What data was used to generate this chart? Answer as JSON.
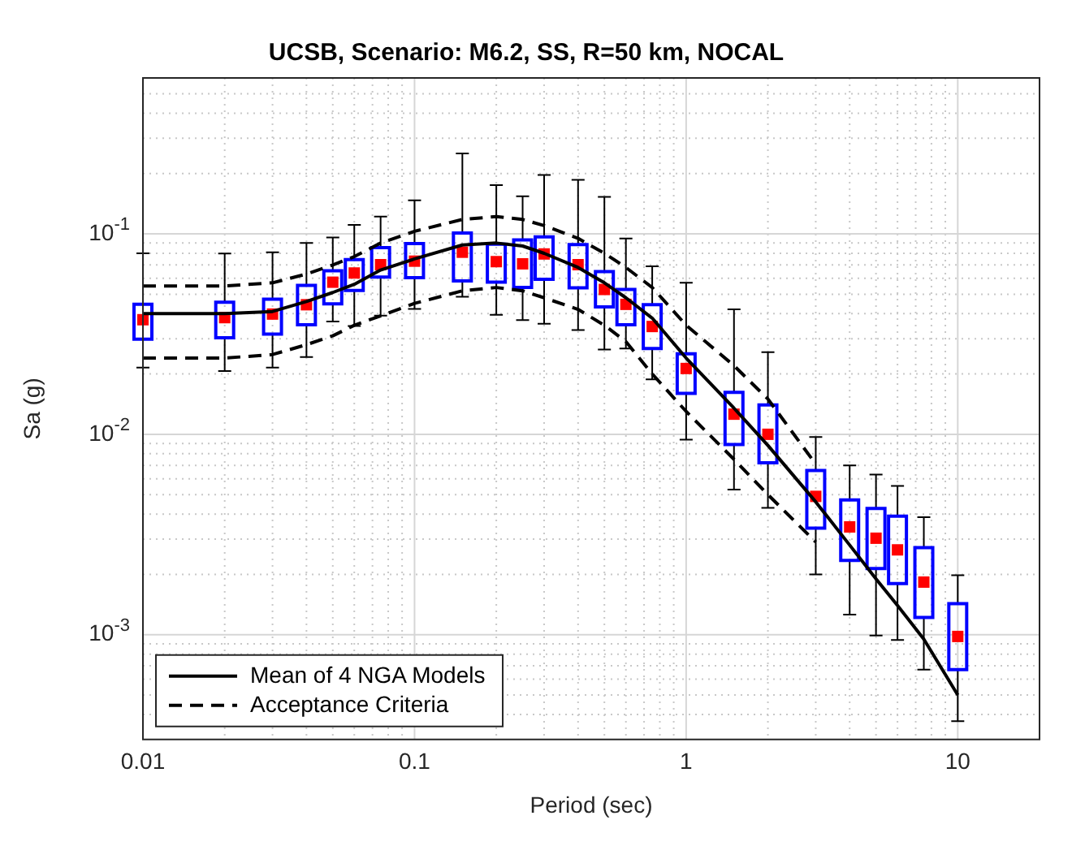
{
  "chart_data": {
    "type": "box",
    "title": "UCSB, Scenario: M6.2, SS, R=50 km, NOCAL",
    "xlabel": "Period (sec)",
    "ylabel": "Sa (g)",
    "log": "xy",
    "grid": true,
    "legend": "bottom left",
    "xlim": [
      0.01,
      20
    ],
    "ylim": [
      0.0003,
      0.6
    ],
    "xticks": [
      0.01,
      {
        "value": 0.02,
        "label": null
      },
      {
        "value": 0.03,
        "label": null
      },
      {
        "value": 0.04,
        "label": null
      },
      {
        "value": 0.05,
        "label": null
      },
      {
        "value": 0.06,
        "label": null
      },
      {
        "value": 0.07,
        "label": null
      },
      {
        "value": 0.08,
        "label": null
      },
      {
        "value": 0.09,
        "label": null
      },
      0.1,
      {
        "value": 0.2,
        "label": null
      },
      {
        "value": 0.3,
        "label": null
      },
      {
        "value": 0.4,
        "label": null
      },
      {
        "value": 0.5,
        "label": null
      },
      {
        "value": 0.6,
        "label": null
      },
      {
        "value": 0.7,
        "label": null
      },
      {
        "value": 0.8,
        "label": null
      },
      {
        "value": 0.9,
        "label": null
      },
      1,
      {
        "value": 2,
        "label": null
      },
      {
        "value": 3,
        "label": null
      },
      {
        "value": 4,
        "label": null
      },
      {
        "value": 5,
        "label": null
      },
      {
        "value": 6,
        "label": null
      },
      {
        "value": 7,
        "label": null
      },
      {
        "value": 8,
        "label": null
      },
      {
        "value": 9,
        "label": null
      },
      10,
      {
        "value": 20,
        "label": null
      }
    ],
    "yticks": [
      {
        "value": 0.0004,
        "label": null
      },
      {
        "value": 0.0005,
        "label": null
      },
      {
        "value": 0.0006,
        "label": null
      },
      {
        "value": 0.0007,
        "label": null
      },
      {
        "value": 0.0008,
        "label": null
      },
      {
        "value": 0.0009,
        "label": null
      },
      {
        "value": 0.001,
        "label": "10$^{-3}$"
      },
      {
        "value": 0.002,
        "label": null
      },
      {
        "value": 0.003,
        "label": null
      },
      {
        "value": 0.004,
        "label": null
      },
      {
        "value": 0.005,
        "label": null
      },
      {
        "value": 0.006,
        "label": null
      },
      {
        "value": 0.007,
        "label": null
      },
      {
        "value": 0.008,
        "label": null
      },
      {
        "value": 0.009,
        "label": null
      },
      {
        "value": 0.01,
        "label": "10$^{-2}$"
      },
      {
        "value": 0.02,
        "label": null
      },
      {
        "value": 0.03,
        "label": null
      },
      {
        "value": 0.04,
        "label": null
      },
      {
        "value": 0.05,
        "label": null
      },
      {
        "value": 0.06,
        "label": null
      },
      {
        "value": 0.07,
        "label": null
      },
      {
        "value": 0.08,
        "label": null
      },
      {
        "value": 0.09,
        "label": null
      },
      {
        "value": 0.1,
        "label": "10$^{-1}$"
      },
      {
        "value": 0.2,
        "label": null
      },
      {
        "value": 0.3,
        "label": null
      },
      {
        "value": 0.4,
        "label": null
      },
      {
        "value": 0.5,
        "label": null
      },
      {
        "value": 0.6,
        "label": null
      }
    ],
    "x": [
      0.01,
      0.02,
      0.03,
      0.04,
      0.05,
      0.06,
      0.075,
      0.1,
      0.15,
      0.2,
      0.25,
      0.3,
      0.4,
      0.5,
      0.6,
      0.75,
      1,
      1.5,
      2,
      3,
      4,
      5,
      6,
      7.5,
      10
    ],
    "series": [
      {
        "color": "#0000ff",
        "boxes": [
          {
            "low": 0.0215,
            "q1": 0.0298,
            "median": 0.0373,
            "q3": 0.0445,
            "high": 0.08
          },
          {
            "low": 0.0207,
            "q1": 0.0303,
            "median": 0.0382,
            "q3": 0.0456,
            "high": 0.0798
          },
          {
            "low": 0.0215,
            "q1": 0.0316,
            "median": 0.0398,
            "q3": 0.0472,
            "high": 0.081
          },
          {
            "low": 0.0243,
            "q1": 0.0352,
            "median": 0.0443,
            "q3": 0.0554,
            "high": 0.09
          },
          {
            "low": 0.0365,
            "q1": 0.0448,
            "median": 0.0574,
            "q3": 0.0654,
            "high": 0.096
          },
          {
            "low": 0.0347,
            "q1": 0.0522,
            "median": 0.0638,
            "q3": 0.0745,
            "high": 0.111
          },
          {
            "low": 0.0391,
            "q1": 0.0609,
            "median": 0.0702,
            "q3": 0.0853,
            "high": 0.122
          },
          {
            "low": 0.0422,
            "q1": 0.0605,
            "median": 0.0731,
            "q3": 0.0894,
            "high": 0.147
          },
          {
            "low": 0.0486,
            "q1": 0.0583,
            "median": 0.081,
            "q3": 0.101,
            "high": 0.252
          },
          {
            "low": 0.0395,
            "q1": 0.0574,
            "median": 0.0727,
            "q3": 0.0888,
            "high": 0.175
          },
          {
            "low": 0.0371,
            "q1": 0.0541,
            "median": 0.0709,
            "q3": 0.0932,
            "high": 0.154
          },
          {
            "low": 0.0356,
            "q1": 0.0594,
            "median": 0.0794,
            "q3": 0.0966,
            "high": 0.197
          },
          {
            "low": 0.0331,
            "q1": 0.0538,
            "median": 0.0702,
            "q3": 0.0884,
            "high": 0.186
          },
          {
            "low": 0.0265,
            "q1": 0.0432,
            "median": 0.0528,
            "q3": 0.0649,
            "high": 0.153
          },
          {
            "low": 0.0268,
            "q1": 0.0352,
            "median": 0.0445,
            "q3": 0.0528,
            "high": 0.0948
          },
          {
            "low": 0.0188,
            "q1": 0.0268,
            "median": 0.0345,
            "q3": 0.0443,
            "high": 0.0689
          },
          {
            "low": 0.0094,
            "q1": 0.016,
            "median": 0.0213,
            "q3": 0.0252,
            "high": 0.057
          },
          {
            "low": 0.0053,
            "q1": 0.0089,
            "median": 0.0126,
            "q3": 0.0162,
            "high": 0.042
          },
          {
            "low": 0.0043,
            "q1": 0.0072,
            "median": 0.01,
            "q3": 0.014,
            "high": 0.0257
          },
          {
            "low": 0.002,
            "q1": 0.0034,
            "median": 0.0049,
            "q3": 0.0066,
            "high": 0.0097
          },
          {
            "low": 0.00126,
            "q1": 0.00235,
            "median": 0.00345,
            "q3": 0.0047,
            "high": 0.007
          },
          {
            "low": 0.00099,
            "q1": 0.00214,
            "median": 0.00303,
            "q3": 0.00427,
            "high": 0.0063
          },
          {
            "low": 0.00094,
            "q1": 0.0018,
            "median": 0.00265,
            "q3": 0.0039,
            "high": 0.00553
          },
          {
            "low": 0.00067,
            "q1": 0.00122,
            "median": 0.00183,
            "q3": 0.00272,
            "high": 0.00386
          },
          {
            "low": 0.00037,
            "q1": 0.00067,
            "median": 0.00098,
            "q3": 0.00143,
            "high": 0.00198
          }
        ]
      },
      {
        "type": "line",
        "name": "Mean of 4 NGA Models",
        "color": "#000000",
        "line_style": "solid",
        "values": [
          0.04,
          0.04,
          0.041,
          0.046,
          0.051,
          0.056,
          0.066,
          0.075,
          0.088,
          0.09,
          0.087,
          0.08,
          0.068,
          0.057,
          0.048,
          0.038,
          0.024,
          0.0135,
          0.0088,
          0.0046,
          0.0028,
          0.0019,
          0.0014,
          0.00095,
          0.0005
        ]
      },
      {
        "type": "line",
        "name": "Acceptance Criteria",
        "color": "#000000",
        "line_style": "dashed",
        "x": [
          0.01,
          0.02,
          0.03,
          0.04,
          0.05,
          0.06,
          0.075,
          0.1,
          0.15,
          0.2,
          0.25,
          0.3,
          0.4,
          0.5,
          0.6,
          0.75,
          1,
          1.5,
          2,
          3
        ],
        "values": [
          0.055,
          0.055,
          0.057,
          0.063,
          0.07,
          0.077,
          0.09,
          0.103,
          0.118,
          0.122,
          0.118,
          0.11,
          0.095,
          0.08,
          0.068,
          0.054,
          0.035,
          0.022,
          0.015,
          0.0071
        ]
      },
      {
        "type": "line",
        "color": "#000000",
        "line_style": "dashed",
        "x": [
          0.01,
          0.02,
          0.03,
          0.04,
          0.05,
          0.06,
          0.075,
          0.1,
          0.15,
          0.2,
          0.25,
          0.3,
          0.4,
          0.5,
          0.6,
          0.75,
          1,
          1.5,
          2,
          3
        ],
        "values": [
          0.024,
          0.024,
          0.025,
          0.028,
          0.031,
          0.035,
          0.039,
          0.045,
          0.052,
          0.054,
          0.052,
          0.048,
          0.042,
          0.035,
          0.029,
          0.02,
          0.013,
          0.0075,
          0.005,
          0.0029
        ]
      }
    ]
  }
}
